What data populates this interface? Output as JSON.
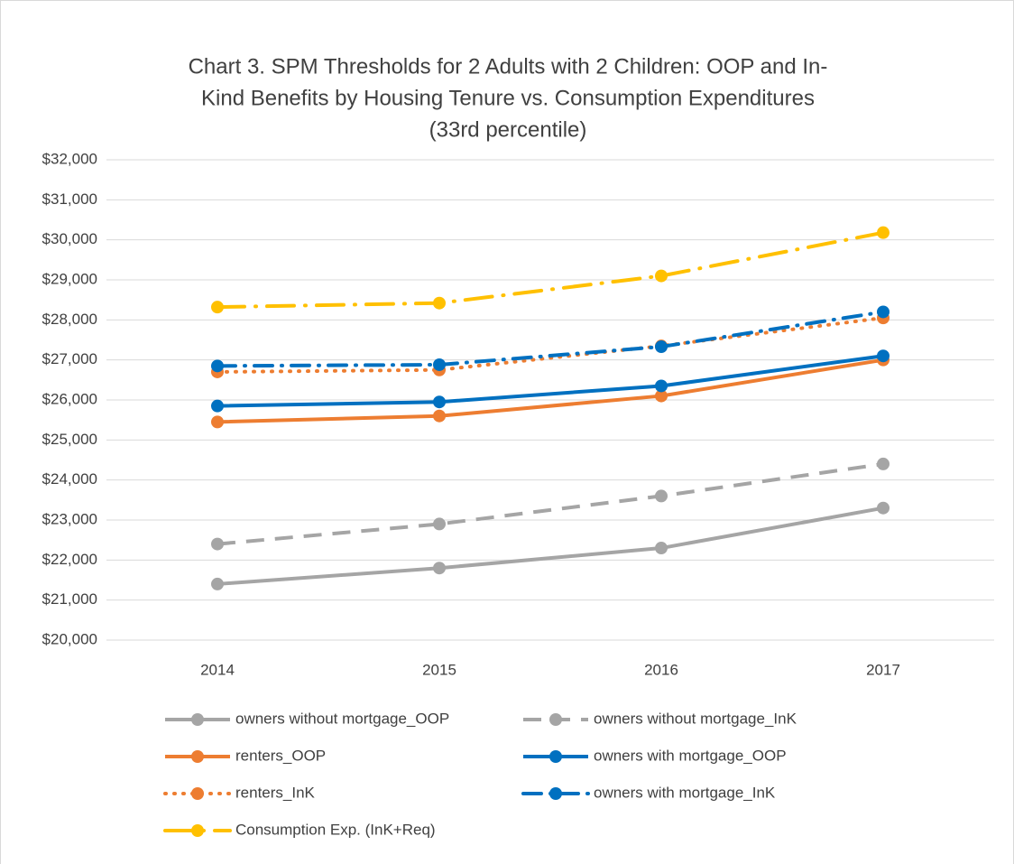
{
  "chart_data": {
    "type": "line",
    "title": [
      "Chart 3. SPM Thresholds for 2 Adults with 2 Children: OOP and In-",
      "Kind Benefits by Housing Tenure vs. Consumption Expenditures",
      "(33rd percentile)"
    ],
    "categories": [
      "2014",
      "2015",
      "2016",
      "2017"
    ],
    "series": [
      {
        "name": "owners without mortgage_OOP",
        "color": "#a5a5a5",
        "dash": "solid",
        "values": [
          21400,
          21800,
          22300,
          23300
        ]
      },
      {
        "name": "owners without mortgage_InK",
        "color": "#a5a5a5",
        "dash": "dash",
        "values": [
          22400,
          22900,
          23600,
          24400
        ]
      },
      {
        "name": "renters_OOP",
        "color": "#ed7d31",
        "dash": "solid",
        "values": [
          25450,
          25600,
          26100,
          27000
        ]
      },
      {
        "name": "owners with mortgage_OOP",
        "color": "#0070c0",
        "dash": "solid",
        "values": [
          25850,
          25950,
          26350,
          27100
        ]
      },
      {
        "name": "renters_InK",
        "color": "#ed7d31",
        "dash": "dot",
        "values": [
          26700,
          26750,
          27350,
          28050
        ]
      },
      {
        "name": "owners with mortgage_InK",
        "color": "#0070c0",
        "dash": "dash-dot",
        "values": [
          26850,
          26880,
          27330,
          28200
        ]
      },
      {
        "name": "Consumption Exp. (InK+Req)",
        "color": "#ffc000",
        "dash": "long-dash-dot",
        "values": [
          28320,
          28420,
          29100,
          30180
        ]
      }
    ],
    "ylim": [
      20000,
      32000
    ],
    "yticks": [
      {
        "value": 20000,
        "label": "$20,000"
      },
      {
        "value": 21000,
        "label": "$21,000"
      },
      {
        "value": 22000,
        "label": "$22,000"
      },
      {
        "value": 23000,
        "label": "$23,000"
      },
      {
        "value": 24000,
        "label": "$24,000"
      },
      {
        "value": 25000,
        "label": "$25,000"
      },
      {
        "value": 26000,
        "label": "$26,000"
      },
      {
        "value": 27000,
        "label": "$27,000"
      },
      {
        "value": 28000,
        "label": "$28,000"
      },
      {
        "value": 29000,
        "label": "$29,000"
      },
      {
        "value": 30000,
        "label": "$30,000"
      },
      {
        "value": 31000,
        "label": "$31,000"
      },
      {
        "value": 32000,
        "label": "$32,000"
      }
    ],
    "grid": true,
    "legend": "bottom"
  }
}
